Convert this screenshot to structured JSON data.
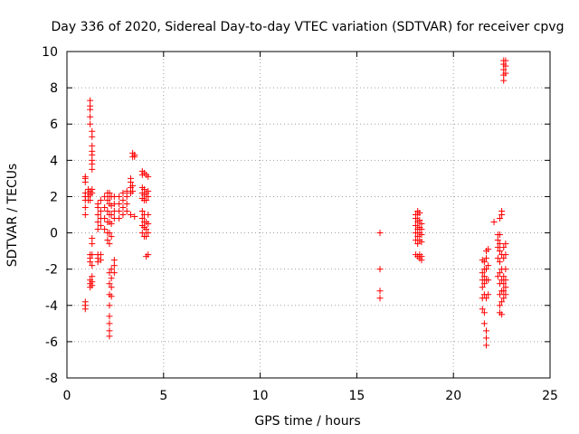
{
  "chart_data": {
    "type": "scatter",
    "title": "Day 336 of 2020, Sidereal Day-to-day VTEC variation (SDTVAR) for receiver cpvg",
    "xlabel": "GPS time / hours",
    "ylabel": "SDTVAR / TECUs",
    "xlim": [
      0,
      25
    ],
    "ylim": [
      -8,
      10
    ],
    "xticks": [
      "0",
      "5",
      "10",
      "15",
      "20",
      "25"
    ],
    "yticks": [
      "10",
      "8",
      "6",
      "4",
      "2",
      "0",
      "-2",
      "-4",
      "-6",
      "-8"
    ],
    "grid": true,
    "marker": "plus",
    "color": "#ff0000",
    "series": [
      {
        "name": "SDTVAR",
        "clusters": [
          {
            "x": 0.95,
            "y": [
              -4.2,
              -4.0,
              -3.8,
              1.0,
              1.4,
              1.8,
              2.0,
              2.2,
              2.8,
              3.0,
              3.1
            ]
          },
          {
            "x": 1.1,
            "y": [
              1.8,
              2.0,
              2.2,
              2.4
            ]
          },
          {
            "x": 1.2,
            "y": [
              -3.0,
              -2.8,
              -2.6,
              -1.6,
              -1.4,
              -1.2,
              1.8,
              2.1,
              2.3,
              6.0,
              6.4,
              6.8,
              7.0,
              7.3
            ]
          },
          {
            "x": 1.3,
            "y": [
              -2.9,
              -2.7,
              -2.4,
              -1.8,
              -1.2,
              -0.6,
              -0.3,
              2.2,
              2.4,
              3.5,
              3.8,
              4.0,
              4.3,
              4.5,
              4.8,
              5.3,
              5.6
            ]
          },
          {
            "x": 1.6,
            "y": [
              -1.6,
              -1.4,
              -1.2,
              0.2,
              0.6,
              1.0,
              1.4,
              1.6
            ]
          },
          {
            "x": 1.75,
            "y": [
              -1.5,
              -1.2,
              0.4,
              0.8,
              1.2,
              1.8
            ]
          },
          {
            "x": 1.95,
            "y": [
              0.2,
              0.8,
              1.4,
              2.0
            ]
          },
          {
            "x": 2.1,
            "y": [
              -0.4,
              0.0,
              0.6,
              1.2,
              1.8,
              2.2
            ]
          },
          {
            "x": 2.2,
            "y": [
              -5.7,
              -5.4,
              -5.0,
              -4.6,
              -4.0,
              -3.4,
              -2.8,
              -2.2,
              -0.6,
              0.0,
              0.6,
              1.0,
              1.6,
              2.0,
              2.2
            ]
          },
          {
            "x": 2.3,
            "y": [
              -3.5,
              -3.0,
              -2.5,
              -2.0,
              -0.2,
              0.5,
              1.0,
              1.5,
              2.0
            ]
          },
          {
            "x": 2.45,
            "y": [
              -2.2,
              -1.8,
              -1.5,
              0.8,
              1.2,
              1.6,
              2.0
            ]
          },
          {
            "x": 2.7,
            "y": [
              0.8,
              1.2,
              1.6,
              2.0
            ]
          },
          {
            "x": 2.9,
            "y": [
              1.0,
              1.4,
              1.8,
              2.2
            ]
          },
          {
            "x": 3.1,
            "y": [
              1.2,
              1.6,
              2.0,
              2.3
            ]
          },
          {
            "x": 3.3,
            "y": [
              1.0,
              2.2,
              2.5,
              2.8,
              3.0
            ]
          },
          {
            "x": 3.4,
            "y": [
              2.3,
              2.6,
              4.2,
              4.4
            ]
          },
          {
            "x": 3.5,
            "y": [
              0.9,
              4.2,
              4.3
            ]
          },
          {
            "x": 3.9,
            "y": [
              0.0,
              0.4,
              0.8,
              1.2,
              1.9,
              2.2,
              2.5,
              3.2,
              3.4
            ]
          },
          {
            "x": 4.0,
            "y": [
              -0.2,
              0.3,
              0.6,
              1.0,
              1.8,
              2.1,
              2.4,
              3.3
            ]
          },
          {
            "x": 4.1,
            "y": [
              -1.3,
              -0.2,
              0.2,
              0.6,
              1.8,
              2.2,
              3.2
            ]
          },
          {
            "x": 4.2,
            "y": [
              -1.2,
              0.0,
              0.5,
              1.0,
              2.0,
              2.3,
              3.1
            ]
          },
          {
            "x": 16.2,
            "y": [
              -3.6,
              -3.2,
              -2.0,
              0.0
            ]
          },
          {
            "x": 18.05,
            "y": [
              -1.2,
              -0.4,
              0.0,
              0.4,
              0.8,
              1.0
            ]
          },
          {
            "x": 18.15,
            "y": [
              -1.3,
              -0.6,
              -0.2,
              0.2,
              0.6,
              1.0,
              1.2
            ]
          },
          {
            "x": 18.25,
            "y": [
              -1.4,
              -1.2,
              -0.4,
              0.0,
              0.3,
              0.7,
              1.1
            ]
          },
          {
            "x": 18.35,
            "y": [
              -1.5,
              -1.3,
              -0.5,
              -0.1,
              0.2,
              0.5
            ]
          },
          {
            "x": 21.5,
            "y": [
              -4.2,
              -3.6,
              -3.0,
              -2.6,
              -2.2,
              -1.5
            ]
          },
          {
            "x": 21.6,
            "y": [
              -5.0,
              -4.4,
              -3.4,
              -2.8,
              -2.4,
              -2.0,
              -1.6
            ]
          },
          {
            "x": 21.7,
            "y": [
              -6.2,
              -5.8,
              -5.4,
              -3.6,
              -2.6,
              -2.0,
              -1.4,
              -1.0
            ]
          },
          {
            "x": 21.8,
            "y": [
              -3.4,
              -2.6,
              -1.8,
              -0.9
            ]
          },
          {
            "x": 22.1,
            "y": [
              0.6
            ]
          },
          {
            "x": 22.3,
            "y": [
              -2.4,
              -1.4,
              -0.8,
              -0.4,
              -0.1
            ]
          },
          {
            "x": 22.4,
            "y": [
              -4.4,
              -4.0,
              -3.4,
              -2.8,
              -2.2,
              -1.6,
              -1.0,
              -0.6,
              -0.1,
              0.8
            ]
          },
          {
            "x": 22.5,
            "y": [
              -4.5,
              -3.8,
              -3.2,
              -2.6,
              -2.0,
              -1.2,
              1.0,
              1.2
            ]
          },
          {
            "x": 22.6,
            "y": [
              -3.6,
              -3.2,
              -2.8,
              -2.4,
              -1.4,
              -0.8,
              8.4,
              8.7,
              9.0,
              9.3,
              9.5
            ]
          },
          {
            "x": 22.7,
            "y": [
              -3.4,
              -3.0,
              -2.6,
              -2.0,
              -1.2,
              -0.6,
              8.8,
              9.2,
              9.5
            ]
          }
        ]
      }
    ]
  }
}
